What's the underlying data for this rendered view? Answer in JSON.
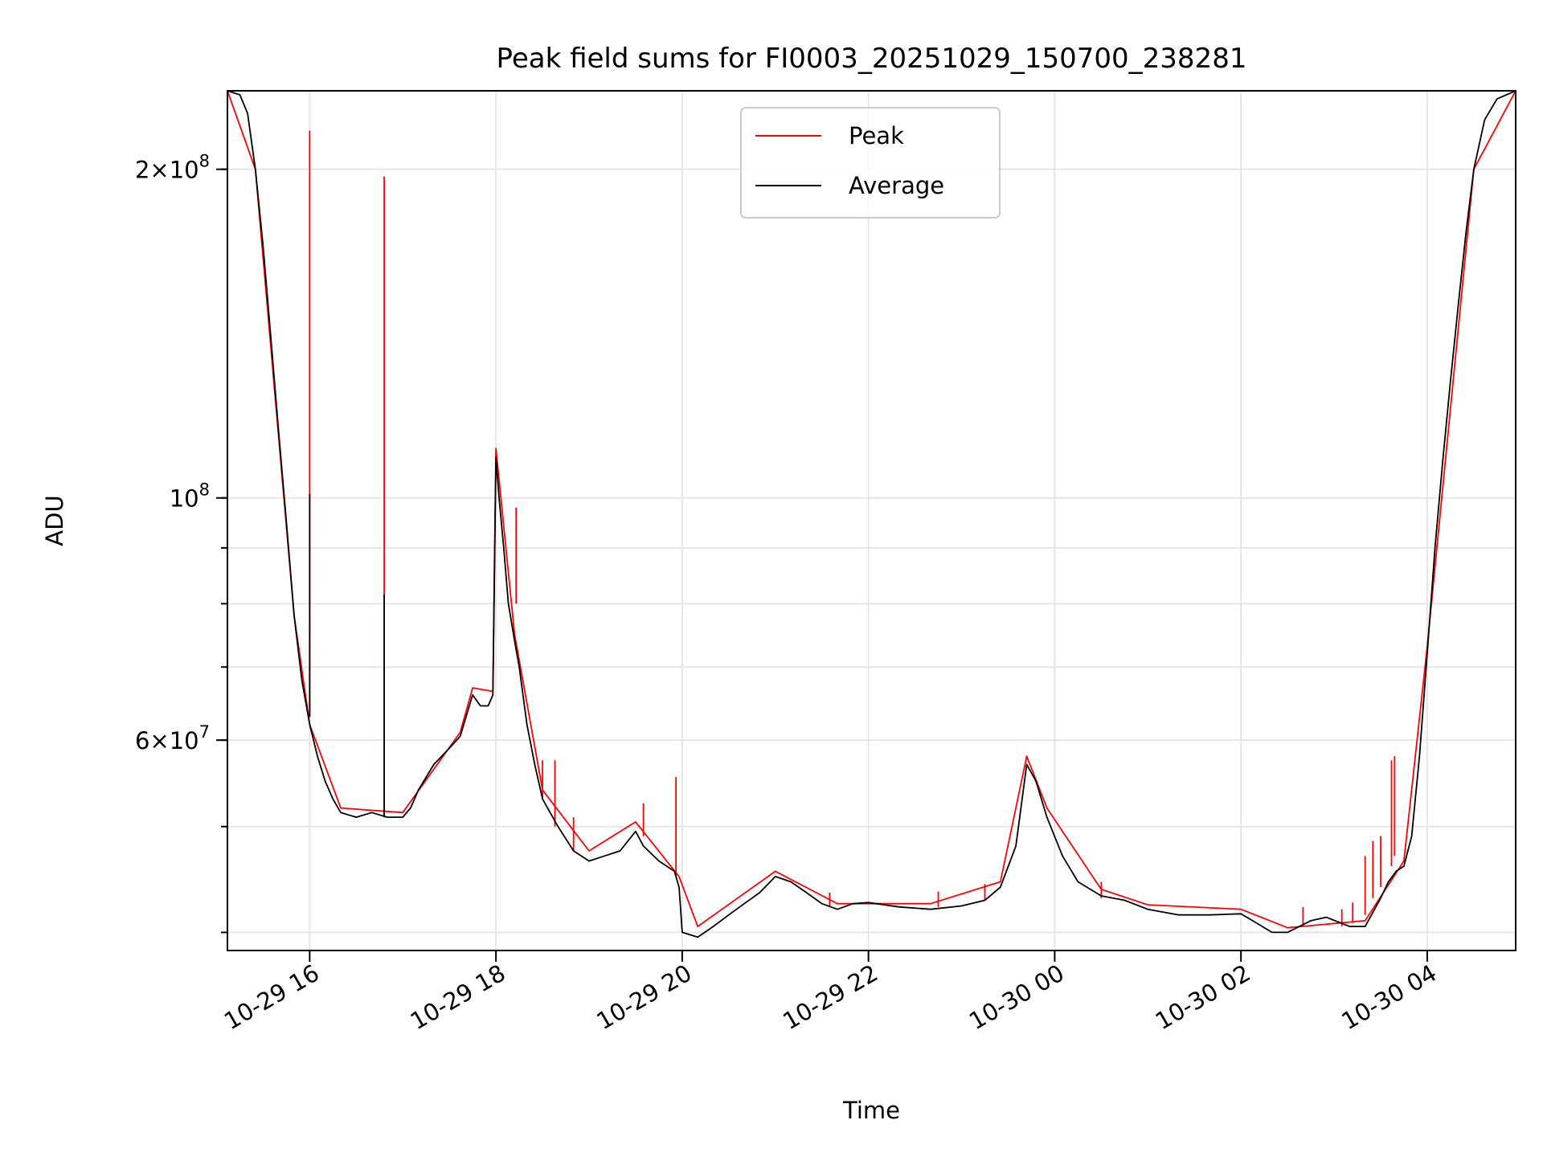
{
  "chart_data": {
    "type": "line",
    "title": "Peak field sums for FI0003_20251029_150700_238281",
    "xlabel": "Time",
    "ylabel": "ADU",
    "yscale": "log",
    "ylim": [
      38500000,
      236000000
    ],
    "xlim": [
      "2025-10-29 15:07",
      "2025-10-30 04:57"
    ],
    "grid": true,
    "legend_position": "top-center",
    "x_ticks": [
      {
        "t": "2025-10-29 16:00",
        "label": "10-29 16"
      },
      {
        "t": "2025-10-29 18:00",
        "label": "10-29 18"
      },
      {
        "t": "2025-10-29 20:00",
        "label": "10-29 20"
      },
      {
        "t": "2025-10-29 22:00",
        "label": "10-29 22"
      },
      {
        "t": "2025-10-30 00:00",
        "label": "10-30 00"
      },
      {
        "t": "2025-10-30 02:00",
        "label": "10-30 02"
      },
      {
        "t": "2025-10-30 04:00",
        "label": "10-30 04"
      }
    ],
    "y_major_ticks": [
      {
        "value": 60000000,
        "mantissa": "6",
        "exp": "7"
      },
      {
        "value": 100000000,
        "mantissa": "",
        "exp": "8"
      },
      {
        "value": 200000000,
        "mantissa": "2",
        "exp": "8"
      }
    ],
    "y_minor_grid": [
      40000000,
      50000000,
      60000000,
      70000000,
      80000000,
      90000000,
      100000000,
      200000000
    ],
    "series": [
      {
        "name": "Average",
        "color": "#000000",
        "points": [
          [
            "2025-10-29 15:07",
            236000000
          ],
          [
            "2025-10-29 15:15",
            234000000
          ],
          [
            "2025-10-29 15:20",
            225000000
          ],
          [
            "2025-10-29 15:25",
            200000000
          ],
          [
            "2025-10-29 15:30",
            170000000
          ],
          [
            "2025-10-29 15:35",
            140000000
          ],
          [
            "2025-10-29 15:40",
            115000000
          ],
          [
            "2025-10-29 15:45",
            95000000
          ],
          [
            "2025-10-29 15:50",
            78000000
          ],
          [
            "2025-10-29 15:55",
            68000000
          ],
          [
            "2025-10-29 16:00",
            62000000
          ],
          [
            "2025-10-29 16:05",
            58000000
          ],
          [
            "2025-10-29 16:10",
            55000000
          ],
          [
            "2025-10-29 16:15",
            53000000
          ],
          [
            "2025-10-29 16:20",
            51500000
          ],
          [
            "2025-10-29 16:30",
            51000000
          ],
          [
            "2025-10-29 16:40",
            51500000
          ],
          [
            "2025-10-29 16:50",
            51000000
          ],
          [
            "2025-10-29 17:00",
            51000000
          ],
          [
            "2025-10-29 17:05",
            52000000
          ],
          [
            "2025-10-29 17:10",
            54000000
          ],
          [
            "2025-10-29 17:20",
            57000000
          ],
          [
            "2025-10-29 17:30",
            59000000
          ],
          [
            "2025-10-29 17:37",
            60500000
          ],
          [
            "2025-10-29 17:45",
            66000000
          ],
          [
            "2025-10-29 17:50",
            64500000
          ],
          [
            "2025-10-29 17:55",
            64500000
          ],
          [
            "2025-10-29 17:58",
            66000000
          ],
          [
            "2025-10-29 18:00",
            109000000
          ],
          [
            "2025-10-29 18:02",
            100000000
          ],
          [
            "2025-10-29 18:05",
            90000000
          ],
          [
            "2025-10-29 18:08",
            80000000
          ],
          [
            "2025-10-29 18:12",
            74000000
          ],
          [
            "2025-10-29 18:15",
            70000000
          ],
          [
            "2025-10-29 18:20",
            62000000
          ],
          [
            "2025-10-29 18:25",
            57000000
          ],
          [
            "2025-10-29 18:30",
            53000000
          ],
          [
            "2025-10-29 18:40",
            50000000
          ],
          [
            "2025-10-29 18:50",
            47500000
          ],
          [
            "2025-10-29 19:00",
            46500000
          ],
          [
            "2025-10-29 19:10",
            47000000
          ],
          [
            "2025-10-29 19:20",
            47500000
          ],
          [
            "2025-10-29 19:30",
            49500000
          ],
          [
            "2025-10-29 19:35",
            48000000
          ],
          [
            "2025-10-29 19:45",
            46500000
          ],
          [
            "2025-10-29 19:55",
            45500000
          ],
          [
            "2025-10-29 19:58",
            44000000
          ],
          [
            "2025-10-29 20:00",
            40000000
          ],
          [
            "2025-10-29 20:10",
            39600000
          ],
          [
            "2025-10-29 20:20",
            40500000
          ],
          [
            "2025-10-29 20:30",
            41500000
          ],
          [
            "2025-10-29 20:40",
            42500000
          ],
          [
            "2025-10-29 20:50",
            43500000
          ],
          [
            "2025-10-29 21:00",
            45000000
          ],
          [
            "2025-10-29 21:10",
            44500000
          ],
          [
            "2025-10-29 21:20",
            43500000
          ],
          [
            "2025-10-29 21:30",
            42500000
          ],
          [
            "2025-10-29 21:40",
            42000000
          ],
          [
            "2025-10-29 21:50",
            42500000
          ],
          [
            "2025-10-29 22:00",
            42600000
          ],
          [
            "2025-10-29 22:20",
            42200000
          ],
          [
            "2025-10-29 22:40",
            42000000
          ],
          [
            "2025-10-29 23:00",
            42300000
          ],
          [
            "2025-10-29 23:15",
            42800000
          ],
          [
            "2025-10-29 23:25",
            44000000
          ],
          [
            "2025-10-29 23:35",
            48000000
          ],
          [
            "2025-10-29 23:42",
            57000000
          ],
          [
            "2025-10-29 23:48",
            55000000
          ],
          [
            "2025-10-29 23:55",
            51000000
          ],
          [
            "2025-10-30 00:05",
            47000000
          ],
          [
            "2025-10-30 00:15",
            44500000
          ],
          [
            "2025-10-30 00:30",
            43200000
          ],
          [
            "2025-10-30 00:45",
            42800000
          ],
          [
            "2025-10-30 01:00",
            42000000
          ],
          [
            "2025-10-30 01:20",
            41500000
          ],
          [
            "2025-10-30 01:40",
            41500000
          ],
          [
            "2025-10-30 02:00",
            41600000
          ],
          [
            "2025-10-30 02:05",
            41200000
          ],
          [
            "2025-10-30 02:20",
            40000000
          ],
          [
            "2025-10-30 02:30",
            40000000
          ],
          [
            "2025-10-30 02:45",
            41000000
          ],
          [
            "2025-10-30 02:55",
            41300000
          ],
          [
            "2025-10-30 03:10",
            40500000
          ],
          [
            "2025-10-30 03:20",
            40500000
          ],
          [
            "2025-10-30 03:30",
            43000000
          ],
          [
            "2025-10-30 03:35",
            44500000
          ],
          [
            "2025-10-30 03:40",
            45500000
          ],
          [
            "2025-10-30 03:45",
            46000000
          ],
          [
            "2025-10-30 03:50",
            49000000
          ],
          [
            "2025-10-30 03:55",
            58000000
          ],
          [
            "2025-10-30 04:00",
            72000000
          ],
          [
            "2025-10-30 04:05",
            90000000
          ],
          [
            "2025-10-30 04:10",
            108000000
          ],
          [
            "2025-10-30 04:15",
            128000000
          ],
          [
            "2025-10-30 04:20",
            150000000
          ],
          [
            "2025-10-30 04:25",
            175000000
          ],
          [
            "2025-10-30 04:30",
            200000000
          ],
          [
            "2025-10-30 04:37",
            222000000
          ],
          [
            "2025-10-30 04:45",
            232000000
          ],
          [
            "2025-10-30 04:57",
            236000000
          ]
        ]
      },
      {
        "name": "Peak",
        "color": "#ff0000",
        "points": [
          [
            "2025-10-29 15:07",
            236000000
          ],
          [
            "2025-10-29 15:25",
            200000000
          ],
          [
            "2025-10-29 15:50",
            78000000
          ],
          [
            "2025-10-29 16:00",
            62000000
          ],
          [
            "2025-10-29 16:20",
            52000000
          ],
          [
            "2025-10-29 17:00",
            51500000
          ],
          [
            "2025-10-29 17:37",
            61000000
          ],
          [
            "2025-10-29 17:45",
            67000000
          ],
          [
            "2025-10-29 17:58",
            66500000
          ],
          [
            "2025-10-29 18:00",
            111000000
          ],
          [
            "2025-10-29 18:12",
            75000000
          ],
          [
            "2025-10-29 18:30",
            54000000
          ],
          [
            "2025-10-29 19:00",
            47500000
          ],
          [
            "2025-10-29 19:30",
            50500000
          ],
          [
            "2025-10-29 19:58",
            45000000
          ],
          [
            "2025-10-29 20:10",
            40500000
          ],
          [
            "2025-10-29 21:00",
            45500000
          ],
          [
            "2025-10-29 21:40",
            42500000
          ],
          [
            "2025-10-29 22:40",
            42500000
          ],
          [
            "2025-10-29 23:25",
            44500000
          ],
          [
            "2025-10-29 23:42",
            58000000
          ],
          [
            "2025-10-29 23:55",
            52000000
          ],
          [
            "2025-10-30 00:30",
            43800000
          ],
          [
            "2025-10-30 01:00",
            42400000
          ],
          [
            "2025-10-30 02:00",
            42000000
          ],
          [
            "2025-10-30 02:30",
            40400000
          ],
          [
            "2025-10-30 03:20",
            41000000
          ],
          [
            "2025-10-30 03:45",
            46500000
          ],
          [
            "2025-10-30 04:00",
            73000000
          ],
          [
            "2025-10-30 04:30",
            200000000
          ],
          [
            "2025-10-30 04:57",
            236000000
          ]
        ],
        "spikes": [
          {
            "t": "2025-10-29 16:00",
            "low": 63000000,
            "high": 217000000
          },
          {
            "t": "2025-10-29 16:48",
            "low": 51000000,
            "high": 197000000
          },
          {
            "t": "2025-10-29 18:13",
            "low": 80000000,
            "high": 98000000
          },
          {
            "t": "2025-10-29 18:30",
            "low": 53000000,
            "high": 57500000
          },
          {
            "t": "2025-10-29 18:38",
            "low": 50000000,
            "high": 57500000
          },
          {
            "t": "2025-10-29 18:50",
            "low": 47500000,
            "high": 51000000
          },
          {
            "t": "2025-10-29 19:35",
            "low": 49000000,
            "high": 52500000
          },
          {
            "t": "2025-10-29 19:56",
            "low": 45000000,
            "high": 55500000
          },
          {
            "t": "2025-10-29 21:35",
            "low": 42300000,
            "high": 43500000
          },
          {
            "t": "2025-10-29 22:45",
            "low": 42200000,
            "high": 43600000
          },
          {
            "t": "2025-10-29 23:15",
            "low": 42800000,
            "high": 44300000
          },
          {
            "t": "2025-10-30 00:30",
            "low": 43000000,
            "high": 44500000
          },
          {
            "t": "2025-10-30 02:40",
            "low": 40500000,
            "high": 42200000
          },
          {
            "t": "2025-10-30 03:05",
            "low": 40500000,
            "high": 42000000
          },
          {
            "t": "2025-10-30 03:12",
            "low": 40800000,
            "high": 42600000
          },
          {
            "t": "2025-10-30 03:20",
            "low": 41500000,
            "high": 47000000
          },
          {
            "t": "2025-10-30 03:25",
            "low": 43000000,
            "high": 48500000
          },
          {
            "t": "2025-10-30 03:30",
            "low": 44000000,
            "high": 49000000
          },
          {
            "t": "2025-10-30 03:37",
            "low": 46000000,
            "high": 57500000
          },
          {
            "t": "2025-10-30 03:39",
            "low": 47000000,
            "high": 58000000
          }
        ]
      }
    ]
  }
}
